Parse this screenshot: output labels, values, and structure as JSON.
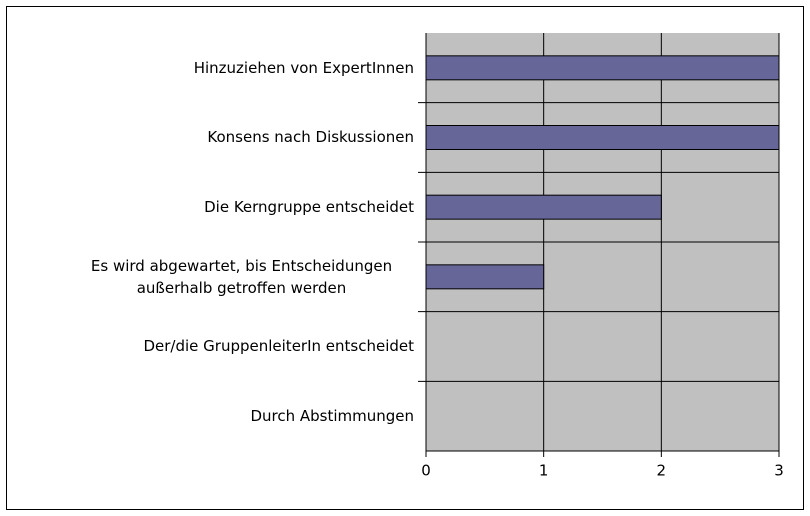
{
  "chart_data": {
    "type": "bar",
    "orientation": "horizontal",
    "categories": [
      "Hinzuziehen von ExpertInnen",
      "Konsens nach Diskussionen",
      "Die Kerngruppe entscheidet",
      "Es wird abgewartet, bis Entscheidungen außerhalb getroffen werden",
      "Der/die GruppenleiterIn entscheidet",
      "Durch Abstimmungen"
    ],
    "values": [
      3,
      3,
      2,
      1,
      0,
      0
    ],
    "color": "#666699",
    "xlim": [
      0,
      3
    ],
    "xticks": [
      0,
      1,
      2,
      3
    ],
    "grid": true
  }
}
